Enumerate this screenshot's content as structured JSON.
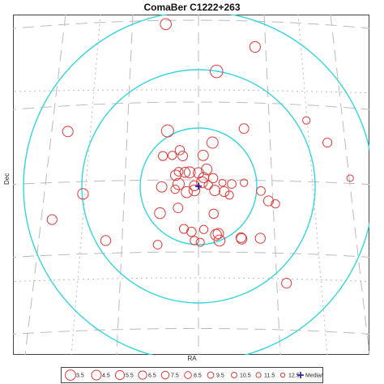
{
  "chart_data": {
    "type": "scatter",
    "title": "ComaBer  C1222+263",
    "xlabel": "RA",
    "ylabel": "Dec",
    "median_marker": {
      "label": "Median",
      "x": 0,
      "y": 0
    },
    "rings": [
      1,
      2,
      3
    ],
    "legend": {
      "sizes": [
        "3.5",
        "4.5",
        "5.5",
        "6.5",
        "7.5",
        "8.5",
        "9.5",
        "10.5",
        "11.5",
        "12.5"
      ],
      "median_label": "Median"
    },
    "points": [
      {
        "x": -0.56,
        "y": 2.78,
        "mag": 5.8
      },
      {
        "x": 0.97,
        "y": 2.39,
        "mag": 6.2
      },
      {
        "x": 0.31,
        "y": 1.97,
        "mag": 4.0
      },
      {
        "x": -2.24,
        "y": 0.94,
        "mag": 6.4
      },
      {
        "x": 0.78,
        "y": 0.99,
        "mag": 7.5
      },
      {
        "x": 1.85,
        "y": 1.13,
        "mag": 10.0
      },
      {
        "x": 2.21,
        "y": 0.75,
        "mag": 8.2
      },
      {
        "x": -0.53,
        "y": 0.95,
        "mag": 4.5
      },
      {
        "x": 0.24,
        "y": 0.75,
        "mag": 5.5
      },
      {
        "x": -0.32,
        "y": 0.62,
        "mag": 7.8
      },
      {
        "x": -0.45,
        "y": 0.53,
        "mag": 9.0
      },
      {
        "x": -0.27,
        "y": 0.52,
        "mag": 7.5
      },
      {
        "x": -0.61,
        "y": 0.52,
        "mag": 8.2
      },
      {
        "x": 0.08,
        "y": 0.53,
        "mag": 6.5
      },
      {
        "x": 0.14,
        "y": 0.29,
        "mag": 6.2
      },
      {
        "x": 0.0,
        "y": 0.23,
        "mag": 6.5
      },
      {
        "x": -0.15,
        "y": 0.24,
        "mag": 5.8
      },
      {
        "x": -0.34,
        "y": 0.25,
        "mag": 8.5
      },
      {
        "x": -0.23,
        "y": 0.24,
        "mag": 7.0
      },
      {
        "x": -0.39,
        "y": 0.19,
        "mag": 6.5
      },
      {
        "x": 0.09,
        "y": 0.15,
        "mag": 6.8
      },
      {
        "x": 0.25,
        "y": 0.14,
        "mag": 7.8
      },
      {
        "x": -0.34,
        "y": 0.04,
        "mag": 5.5
      },
      {
        "x": -0.07,
        "y": 0.01,
        "mag": 7.0
      },
      {
        "x": 0.06,
        "y": 0.07,
        "mag": 5.8
      },
      {
        "x": 0.17,
        "y": 0.02,
        "mag": 8.8
      },
      {
        "x": 0.41,
        "y": 0.06,
        "mag": 10.5
      },
      {
        "x": 0.57,
        "y": 0.04,
        "mag": 8.5
      },
      {
        "x": 0.78,
        "y": 0.06,
        "mag": 10.0
      },
      {
        "x": -0.63,
        "y": -0.01,
        "mag": 6.5
      },
      {
        "x": -0.4,
        "y": -0.05,
        "mag": 8.8
      },
      {
        "x": -0.07,
        "y": -0.07,
        "mag": 6.0
      },
      {
        "x": -0.2,
        "y": -0.1,
        "mag": 5.8
      },
      {
        "x": 0.28,
        "y": -0.07,
        "mag": 6.5
      },
      {
        "x": 0.44,
        "y": -0.09,
        "mag": 7.2
      },
      {
        "x": 1.07,
        "y": -0.08,
        "mag": 8.5
      },
      {
        "x": 0.53,
        "y": -0.15,
        "mag": 9.2
      },
      {
        "x": 1.2,
        "y": -0.25,
        "mag": 7.2
      },
      {
        "x": -1.98,
        "y": -0.13,
        "mag": 6.2
      },
      {
        "x": 1.32,
        "y": -0.3,
        "mag": 9.0
      },
      {
        "x": -0.66,
        "y": -0.46,
        "mag": 6.0
      },
      {
        "x": -0.35,
        "y": -0.37,
        "mag": 7.5
      },
      {
        "x": 0.26,
        "y": -0.47,
        "mag": 7.8
      },
      {
        "x": -2.51,
        "y": -0.57,
        "mag": 7.2
      },
      {
        "x": -0.25,
        "y": -0.73,
        "mag": 8.2
      },
      {
        "x": -0.12,
        "y": -0.78,
        "mag": 7.8
      },
      {
        "x": 0.09,
        "y": -0.74,
        "mag": 9.0
      },
      {
        "x": 0.34,
        "y": -0.81,
        "mag": 6.5
      },
      {
        "x": 0.3,
        "y": -0.83,
        "mag": 6.0
      },
      {
        "x": 0.74,
        "y": -0.9,
        "mag": 6.5
      },
      {
        "x": -0.07,
        "y": -0.93,
        "mag": 8.8
      },
      {
        "x": -1.59,
        "y": -0.93,
        "mag": 7.0
      },
      {
        "x": -0.7,
        "y": -1.0,
        "mag": 8.5
      },
      {
        "x": 0.03,
        "y": -0.96,
        "mag": 9.2
      },
      {
        "x": 0.36,
        "y": -0.93,
        "mag": 5.8
      },
      {
        "x": 0.73,
        "y": -0.88,
        "mag": 7.2
      },
      {
        "x": 1.06,
        "y": -0.89,
        "mag": 7.0
      },
      {
        "x": 2.6,
        "y": 0.14,
        "mag": 11.0
      },
      {
        "x": 1.51,
        "y": -1.66,
        "mag": 7.2
      }
    ]
  }
}
